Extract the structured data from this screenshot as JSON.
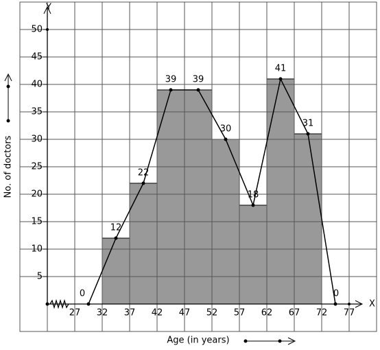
{
  "chart_data": {
    "type": "histogram",
    "xlabel": "Age (in years)",
    "ylabel": "No. of doctors",
    "x_axis_name": "X",
    "y_axis_name": "Y",
    "bins": [
      32,
      37,
      42,
      47,
      52,
      57,
      62,
      67,
      72
    ],
    "values": [
      12,
      22,
      39,
      39,
      30,
      18,
      41,
      31
    ],
    "color": "#999999",
    "polygon": {
      "x": [
        29.5,
        34.5,
        39.5,
        44.5,
        49.5,
        54.5,
        59.5,
        64.5,
        69.5,
        74.5
      ],
      "values": [
        0,
        12,
        22,
        39,
        39,
        30,
        18,
        41,
        31,
        0
      ]
    },
    "xlim": [
      22,
      82
    ],
    "ylim": [
      -5,
      55
    ],
    "xticks": [
      27,
      32,
      37,
      42,
      47,
      52,
      57,
      62,
      67,
      72,
      77
    ],
    "yticks": [
      5,
      10,
      15,
      20,
      25,
      30,
      35,
      40,
      45,
      50
    ],
    "grid": true
  }
}
